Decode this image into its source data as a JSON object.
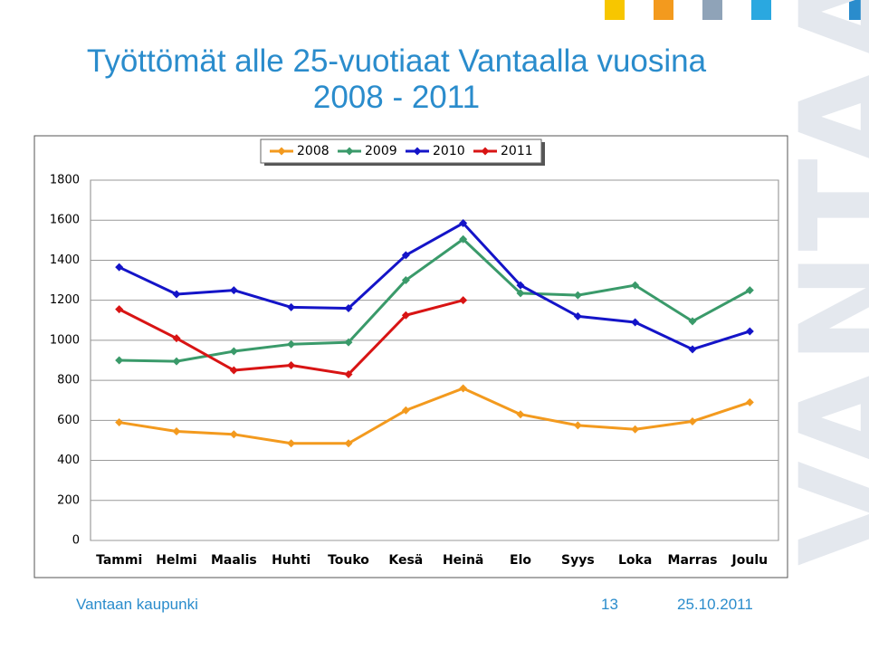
{
  "chart_data": {
    "type": "line",
    "title": "Työttömät alle 25-vuotiaat Vantaalla vuosina 2008 - 2011",
    "categories": [
      "Tammi",
      "Helmi",
      "Maalis",
      "Huhti",
      "Touko",
      "Kesä",
      "Heinä",
      "Elo",
      "Syys",
      "Loka",
      "Marras",
      "Joulu"
    ],
    "series": [
      {
        "name": "2008",
        "color": "#f39a1e",
        "values": [
          590,
          545,
          530,
          485,
          485,
          650,
          760,
          630,
          575,
          555,
          595,
          690
        ]
      },
      {
        "name": "2009",
        "color": "#3a9a6a",
        "values": [
          900,
          895,
          945,
          980,
          990,
          1300,
          1505,
          1235,
          1225,
          1275,
          1095,
          1250
        ]
      },
      {
        "name": "2010",
        "color": "#1414c8",
        "values": [
          1365,
          1230,
          1250,
          1165,
          1160,
          1425,
          1585,
          1275,
          1120,
          1090,
          955,
          1045
        ]
      },
      {
        "name": "2011",
        "color": "#d81414",
        "values": [
          1155,
          1010,
          850,
          875,
          830,
          1125,
          1200,
          null,
          null,
          null,
          null,
          null
        ]
      }
    ],
    "ylim": [
      0,
      1800
    ],
    "yticks": [
      0,
      200,
      400,
      600,
      800,
      1000,
      1200,
      1400,
      1600,
      1800
    ],
    "grid": true,
    "legend": "top"
  },
  "footer": {
    "organization": "Vantaan kaupunki",
    "page": "13",
    "date": "25.10.2011"
  },
  "watermark": "VANTAA"
}
